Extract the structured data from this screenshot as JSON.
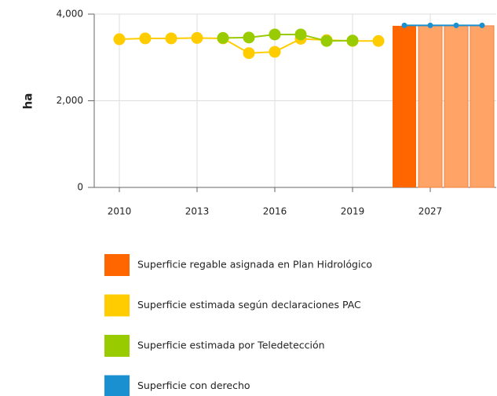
{
  "chart_data": {
    "type": "combo",
    "y_label": "ha",
    "categories": [
      "2010",
      null,
      null,
      "2013",
      null,
      null,
      "2016",
      null,
      null,
      "2019",
      null,
      null,
      "2027",
      null,
      null
    ],
    "ylim": [
      0,
      4000
    ],
    "yticks": [
      0,
      {
        "value": 2000,
        "label": "2,000"
      },
      {
        "value": 4000,
        "label": "4,000"
      }
    ],
    "grid": true,
    "series": [
      {
        "name": "Superficie regable asignada en Plan Hidrológico",
        "type": "bar",
        "color": "#ff6600",
        "colors": [
          null,
          null,
          null,
          null,
          null,
          null,
          null,
          null,
          null,
          null,
          null,
          "#ff6600",
          "#ffa366",
          "#ffa366",
          "#ffa366"
        ],
        "values": [
          null,
          null,
          null,
          null,
          null,
          null,
          null,
          null,
          null,
          null,
          null,
          3730,
          3730,
          3730,
          3730
        ]
      },
      {
        "name": "Superficie estimada según declaraciones PAC",
        "type": "line",
        "color": "#ffcc00",
        "values": [
          3420,
          3440,
          3440,
          3450,
          3440,
          3100,
          3130,
          3430,
          3400,
          3380,
          3380,
          null,
          null,
          null,
          null
        ]
      },
      {
        "name": "Superficie estimada por Teledetección",
        "type": "line",
        "color": "#99cc00",
        "values": [
          null,
          null,
          null,
          null,
          3450,
          3460,
          3530,
          3530,
          3380,
          3390,
          null,
          null,
          null,
          null,
          null
        ]
      },
      {
        "name": "Superficie con derecho",
        "type": "line",
        "color": "#1a90d0",
        "small": true,
        "values": [
          null,
          null,
          null,
          null,
          null,
          null,
          null,
          null,
          null,
          null,
          null,
          3740,
          3740,
          3740,
          3740
        ]
      }
    ]
  }
}
